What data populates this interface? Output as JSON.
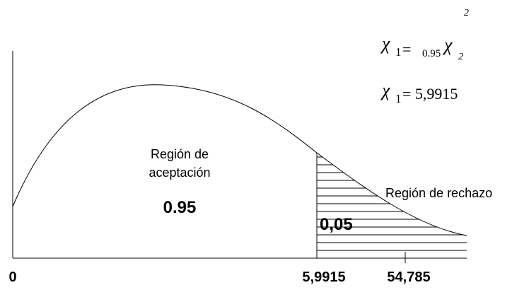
{
  "diagram": {
    "acceptance_region": {
      "label_line1": "Región de",
      "label_line2": "aceptación",
      "value": "0.95"
    },
    "rejection_region": {
      "label": "Región de rechazo",
      "value": "0,05"
    },
    "axis": {
      "origin_label": "0",
      "critical_label": "5,9915",
      "statistic_label": "54,785"
    },
    "formulas": {
      "line1": {
        "chi": "χ",
        "sub1": "1",
        "eq": "=",
        "coef": "0.95",
        "chi2": "χ",
        "sup": "2",
        "sub2": "2"
      },
      "line2": {
        "chi": "χ",
        "sub1": "1",
        "rest": "= 5,9915"
      }
    },
    "colors": {
      "line": "#000000",
      "background": "#ffffff"
    }
  }
}
